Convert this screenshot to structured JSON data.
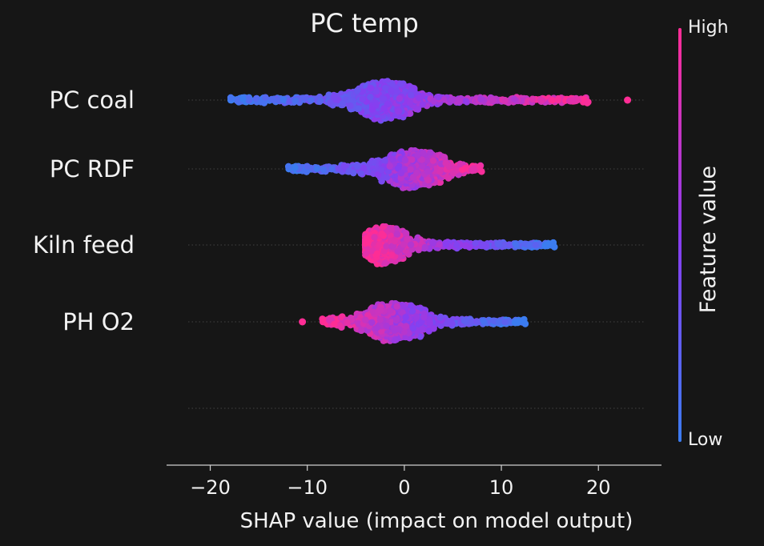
{
  "chart_data": {
    "type": "scatter",
    "subtype": "shap-beeswarm",
    "title": "PC temp",
    "xlabel": "SHAP value (impact on model output)",
    "ylabel": "",
    "xlim": [
      -24.5,
      26.5
    ],
    "xticks": [
      -20,
      -10,
      0,
      10,
      20
    ],
    "xtick_labels": [
      "−20",
      "−10",
      "0",
      "10",
      "20"
    ],
    "features": [
      {
        "name": "PC coal",
        "min": -18,
        "max": 19,
        "outliers": [
          23
        ],
        "peak": -2,
        "spread": 2.5,
        "low_to_high": "positive"
      },
      {
        "name": "PC RDF",
        "min": -12,
        "max": 8,
        "outliers": [],
        "peak": 1,
        "spread": 2.6,
        "low_to_high": "positive"
      },
      {
        "name": "Kiln feed",
        "min": -4,
        "max": 15.5,
        "outliers": [],
        "peak": -2,
        "spread": 1.8,
        "low_to_high": "negative"
      },
      {
        "name": "PH O2",
        "min": -8.5,
        "max": 12.5,
        "outliers": [
          -10.5
        ],
        "peak": -1,
        "spread": 2.6,
        "low_to_high": "negative"
      },
      {
        "name": "",
        "min": 0,
        "max": 0,
        "outliers": [],
        "peak": 0,
        "spread": 0,
        "low_to_high": "none"
      }
    ],
    "colorbar": {
      "label": "Feature value",
      "high_label": "High",
      "low_label": "Low",
      "high_color": "#ff0d87",
      "mid_color": "#8a2be2",
      "low_color": "#1e88e5"
    }
  }
}
